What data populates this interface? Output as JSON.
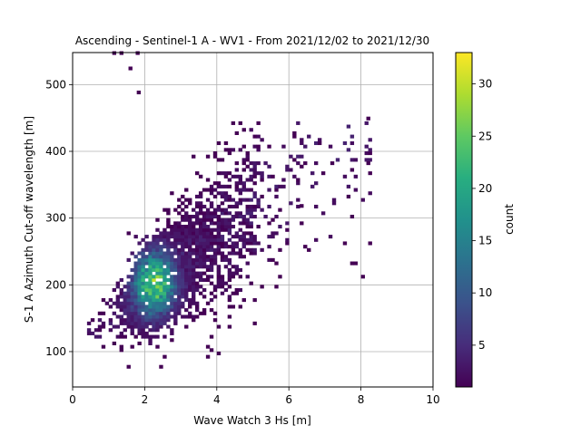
{
  "chart_data": {
    "type": "heatmap",
    "title": "Ascending - Sentinel-1 A - WV1 - From 2021/12/02 to 2021/12/30",
    "xlabel": "Wave Watch 3 Hs [m]",
    "ylabel": "S-1 A Azimuth Cut-off wavelength [m]",
    "xlim": [
      0,
      10
    ],
    "ylim": [
      47,
      548
    ],
    "x_ticks": [
      0,
      2,
      4,
      6,
      8,
      10
    ],
    "y_ticks": [
      100,
      200,
      300,
      400,
      500
    ],
    "grid": true,
    "colormap": "viridis",
    "bin_size": {
      "x": 0.1,
      "y": 5
    },
    "colorbar": {
      "label": "count",
      "min": 1,
      "max": 33,
      "ticks": [
        5,
        10,
        15,
        20,
        25,
        30
      ]
    },
    "density_model": {
      "description": "dense cloud: mean cut-off rises roughly linearly with Hs",
      "x_range": [
        0.4,
        8.2
      ],
      "center_line": {
        "slope": 42,
        "intercept": 105
      },
      "peak": {
        "x": 2.2,
        "y": 200,
        "count": 33
      }
    },
    "outliers": [
      {
        "x": 1.1,
        "y": 545,
        "count": 1
      },
      {
        "x": 1.3,
        "y": 545,
        "count": 1
      },
      {
        "x": 1.75,
        "y": 545,
        "count": 1
      },
      {
        "x": 1.55,
        "y": 522,
        "count": 1
      },
      {
        "x": 1.78,
        "y": 486,
        "count": 1
      },
      {
        "x": 8.15,
        "y": 447,
        "count": 1
      },
      {
        "x": 7.15,
        "y": 380,
        "count": 1
      },
      {
        "x": 8.15,
        "y": 380,
        "count": 1
      },
      {
        "x": 7.6,
        "y": 330,
        "count": 1
      },
      {
        "x": 6.3,
        "y": 316,
        "count": 1
      }
    ]
  }
}
